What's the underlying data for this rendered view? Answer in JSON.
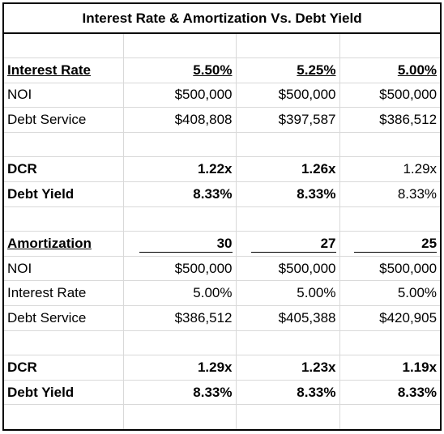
{
  "title": "Interest Rate & Amortization Vs. Debt Yield",
  "sections": [
    {
      "rows": [
        [
          "Interest Rate",
          "5.50%",
          "5.25%",
          "5.00%"
        ],
        [
          "NOI",
          "$500,000",
          "$500,000",
          "$500,000"
        ],
        [
          "Debt Service",
          "$408,808",
          "$397,587",
          "$386,512"
        ]
      ]
    },
    {
      "rows": [
        [
          "DCR",
          "1.22x",
          "1.26x",
          "1.29x"
        ],
        [
          "Debt Yield",
          "8.33%",
          "8.33%",
          "8.33%"
        ]
      ]
    },
    {
      "rows": [
        [
          "Amortization",
          "30",
          "27",
          "25"
        ],
        [
          "NOI",
          "$500,000",
          "$500,000",
          "$500,000"
        ],
        [
          "Interest Rate",
          "5.00%",
          "5.00%",
          "5.00%"
        ],
        [
          "Debt Service",
          "$386,512",
          "$405,388",
          "$420,905"
        ]
      ]
    },
    {
      "rows": [
        [
          "DCR",
          "1.29x",
          "1.23x",
          "1.19x"
        ],
        [
          "Debt Yield",
          "8.33%",
          "8.33%",
          "8.33%"
        ]
      ]
    }
  ]
}
